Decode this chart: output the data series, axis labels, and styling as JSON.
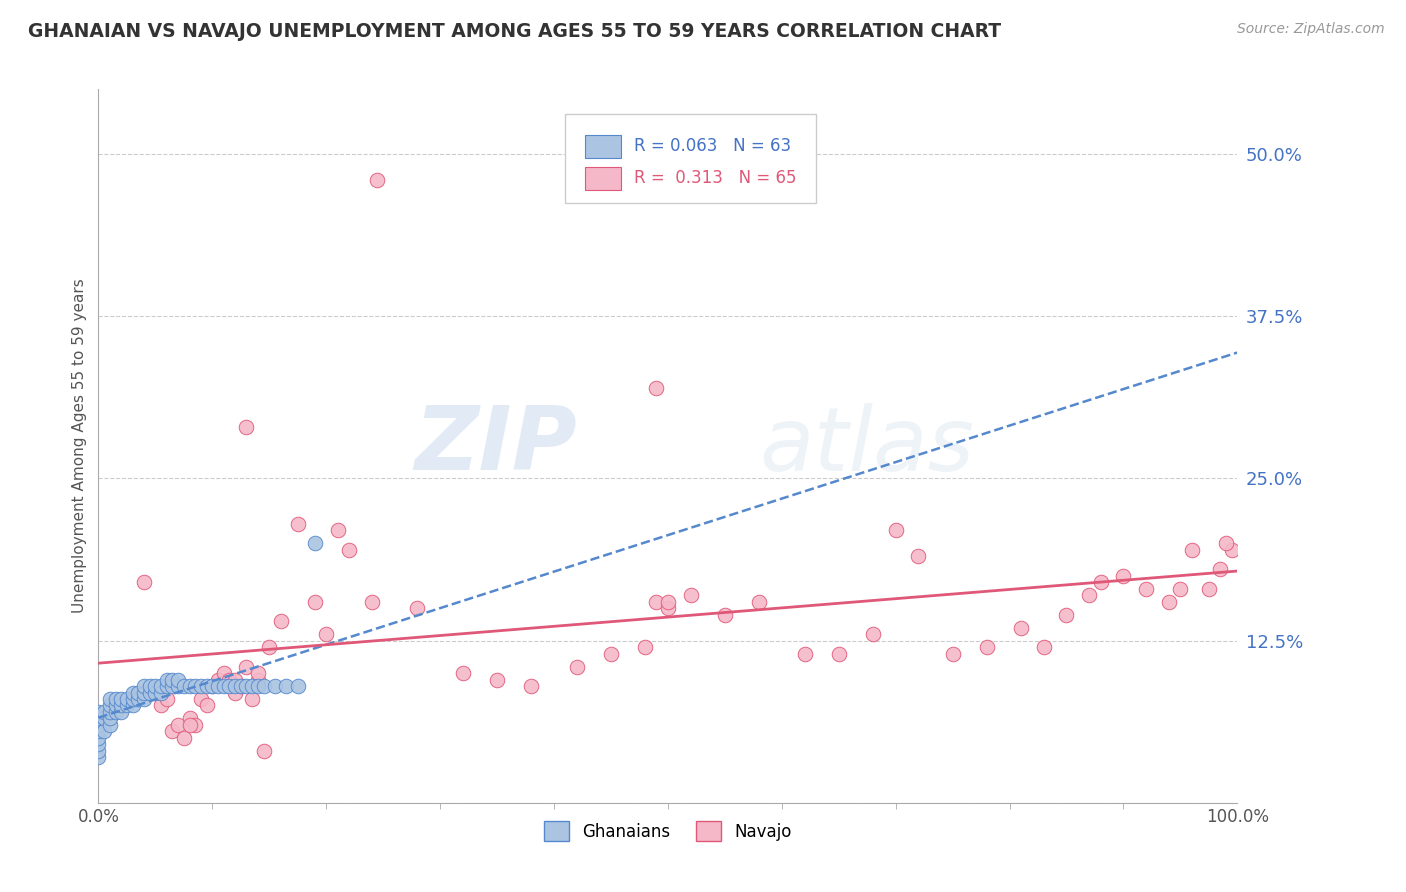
{
  "title": "GHANAIAN VS NAVAJO UNEMPLOYMENT AMONG AGES 55 TO 59 YEARS CORRELATION CHART",
  "source": "Source: ZipAtlas.com",
  "ylabel": "Unemployment Among Ages 55 to 59 years",
  "xlim": [
    0.0,
    1.0
  ],
  "ylim": [
    0.0,
    0.55
  ],
  "yticks": [
    0.0,
    0.125,
    0.25,
    0.375,
    0.5
  ],
  "ytick_labels": [
    "",
    "12.5%",
    "25.0%",
    "37.5%",
    "50.0%"
  ],
  "xtick_labels": [
    "0.0%",
    "100.0%"
  ],
  "ghanaian_color": "#aac4e2",
  "navajo_color": "#f5b8c8",
  "ghanaian_line_color": "#5588cc",
  "navajo_line_color": "#e05878",
  "legend_R_ghanaian": "0.063",
  "legend_N_ghanaian": "63",
  "legend_R_navajo": "0.313",
  "legend_N_navajo": "65",
  "watermark_zip": "ZIP",
  "watermark_atlas": "atlas",
  "ghanaian_x": [
    0.0,
    0.0,
    0.0,
    0.0,
    0.0,
    0.0,
    0.0,
    0.0,
    0.005,
    0.005,
    0.005,
    0.01,
    0.01,
    0.01,
    0.01,
    0.01,
    0.015,
    0.015,
    0.015,
    0.02,
    0.02,
    0.02,
    0.025,
    0.025,
    0.03,
    0.03,
    0.03,
    0.035,
    0.035,
    0.04,
    0.04,
    0.04,
    0.045,
    0.045,
    0.05,
    0.05,
    0.055,
    0.055,
    0.06,
    0.06,
    0.065,
    0.065,
    0.07,
    0.07,
    0.075,
    0.08,
    0.085,
    0.09,
    0.095,
    0.1,
    0.105,
    0.11,
    0.115,
    0.12,
    0.125,
    0.13,
    0.135,
    0.14,
    0.145,
    0.155,
    0.165,
    0.175,
    0.19
  ],
  "ghanaian_y": [
    0.035,
    0.04,
    0.045,
    0.05,
    0.055,
    0.06,
    0.065,
    0.07,
    0.055,
    0.065,
    0.07,
    0.06,
    0.065,
    0.07,
    0.075,
    0.08,
    0.07,
    0.075,
    0.08,
    0.07,
    0.075,
    0.08,
    0.075,
    0.08,
    0.075,
    0.08,
    0.085,
    0.08,
    0.085,
    0.08,
    0.085,
    0.09,
    0.085,
    0.09,
    0.085,
    0.09,
    0.085,
    0.09,
    0.09,
    0.095,
    0.09,
    0.095,
    0.09,
    0.095,
    0.09,
    0.09,
    0.09,
    0.09,
    0.09,
    0.09,
    0.09,
    0.09,
    0.09,
    0.09,
    0.09,
    0.09,
    0.09,
    0.09,
    0.09,
    0.09,
    0.09,
    0.09,
    0.2
  ],
  "navajo_x": [
    0.04,
    0.055,
    0.06,
    0.065,
    0.07,
    0.075,
    0.08,
    0.085,
    0.09,
    0.095,
    0.1,
    0.105,
    0.11,
    0.115,
    0.12,
    0.125,
    0.13,
    0.135,
    0.14,
    0.15,
    0.16,
    0.175,
    0.19,
    0.2,
    0.21,
    0.22,
    0.24,
    0.28,
    0.32,
    0.35,
    0.38,
    0.42,
    0.45,
    0.48,
    0.52,
    0.55,
    0.58,
    0.62,
    0.65,
    0.68,
    0.7,
    0.72,
    0.75,
    0.78,
    0.81,
    0.83,
    0.85,
    0.87,
    0.88,
    0.9,
    0.92,
    0.94,
    0.95,
    0.96,
    0.975,
    0.985,
    0.995,
    0.49,
    0.5,
    0.12,
    0.08,
    0.14,
    0.145,
    0.5,
    0.99
  ],
  "navajo_y": [
    0.17,
    0.075,
    0.08,
    0.055,
    0.06,
    0.05,
    0.065,
    0.06,
    0.08,
    0.075,
    0.09,
    0.095,
    0.1,
    0.095,
    0.085,
    0.09,
    0.105,
    0.08,
    0.095,
    0.12,
    0.14,
    0.215,
    0.155,
    0.13,
    0.21,
    0.195,
    0.155,
    0.15,
    0.1,
    0.095,
    0.09,
    0.105,
    0.115,
    0.12,
    0.16,
    0.145,
    0.155,
    0.115,
    0.115,
    0.13,
    0.21,
    0.19,
    0.115,
    0.12,
    0.135,
    0.12,
    0.145,
    0.16,
    0.17,
    0.175,
    0.165,
    0.155,
    0.165,
    0.195,
    0.165,
    0.18,
    0.195,
    0.155,
    0.15,
    0.095,
    0.06,
    0.1,
    0.04,
    0.155,
    0.2
  ],
  "navajo_outlier_x": [
    0.245
  ],
  "navajo_outlier_y": [
    0.48
  ],
  "navajo_hi1_x": [
    0.49
  ],
  "navajo_hi1_y": [
    0.32
  ],
  "navajo_hi2_x": [
    0.13
  ],
  "navajo_hi2_y": [
    0.29
  ]
}
